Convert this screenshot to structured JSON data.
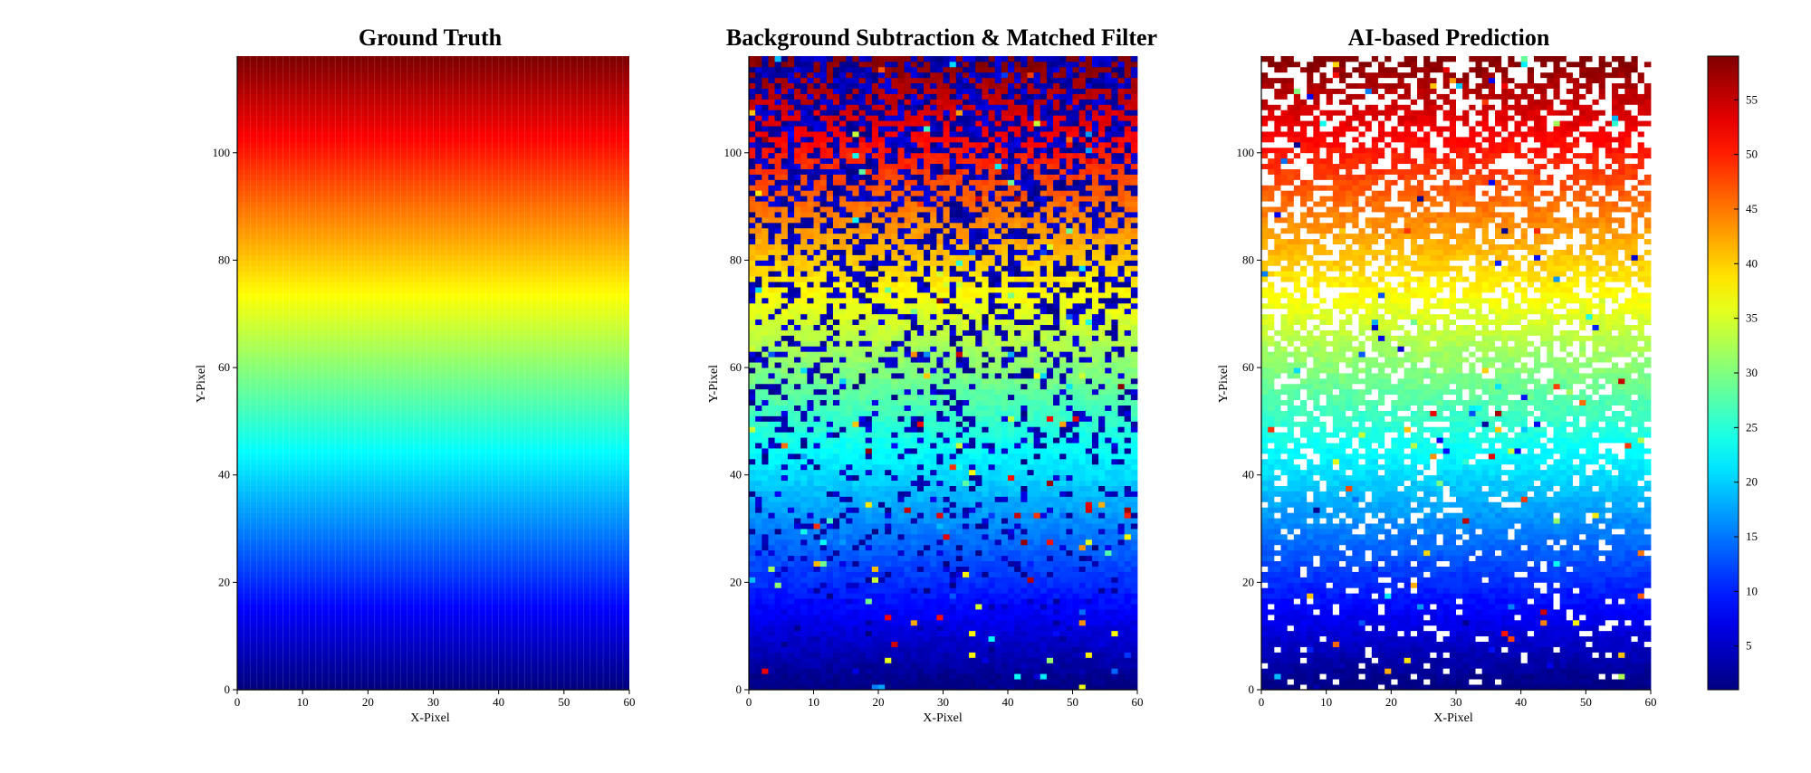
{
  "chart_data": [
    {
      "type": "heatmap",
      "title": "Ground Truth",
      "xlabel": "X-Pixel",
      "ylabel": "Y-Pixel",
      "xlim": [
        0,
        60
      ],
      "ylim": [
        0,
        118
      ],
      "xticks": [
        "0",
        "10",
        "20",
        "30",
        "40",
        "50",
        "60"
      ],
      "yticks": [
        "0",
        "20",
        "40",
        "60",
        "80",
        "100"
      ],
      "grid_size": [
        60,
        118
      ],
      "value_profile": "value increases linearly with Y-Pixel from 1 at y=0 to 59 at y=118, constant along X-Pixel",
      "missing_fraction": 0,
      "outlier_fraction": 0
    },
    {
      "type": "heatmap",
      "title": "Background Subtraction & Matched Filter",
      "xlabel": "X-Pixel",
      "ylabel": "Y-Pixel",
      "xlim": [
        0,
        60
      ],
      "ylim": [
        0,
        118
      ],
      "xticks": [
        "0",
        "10",
        "20",
        "30",
        "40",
        "50",
        "60"
      ],
      "yticks": [
        "0",
        "20",
        "40",
        "60",
        "80",
        "100"
      ],
      "grid_size": [
        60,
        118
      ],
      "value_profile": "same gradient as ground truth with many low-value (dark blue) dropout pixels, increasing toward the top, plus scattered outliers",
      "missing_fraction": 0,
      "outlier_fraction": 0.03
    },
    {
      "type": "heatmap",
      "title": "AI-based Prediction",
      "xlabel": "X-Pixel",
      "ylabel": "Y-Pixel",
      "xlim": [
        0,
        60
      ],
      "ylim": [
        0,
        118
      ],
      "xticks": [
        "0",
        "10",
        "20",
        "30",
        "40",
        "50",
        "60"
      ],
      "yticks": [
        "0",
        "20",
        "40",
        "60",
        "80",
        "100"
      ],
      "grid_size": [
        60,
        118
      ],
      "value_profile": "same gradient as ground truth with white (empty) pixels, increasing toward the top, plus scattered outliers",
      "missing_fraction": 0.2,
      "outlier_fraction": 0.02
    }
  ],
  "colorbar": {
    "colormap": "jet",
    "range": [
      1,
      59
    ],
    "ticks": [
      "5",
      "10",
      "15",
      "20",
      "25",
      "30",
      "35",
      "40",
      "45",
      "50",
      "55"
    ]
  }
}
